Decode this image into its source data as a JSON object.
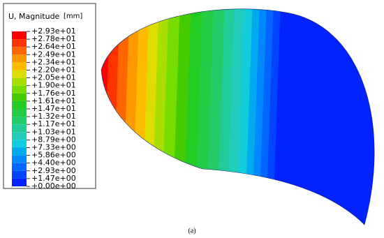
{
  "legend": {
    "title": "U, Magnitude",
    "unit": "[mm]",
    "labels": [
      "+2.93e+01",
      "+2.78e+01",
      "+2.64e+01",
      "+2.49e+01",
      "+2.34e+01",
      "+2.20e+01",
      "+2.05e+01",
      "+1.90e+01",
      "+1.76e+01",
      "+1.61e+01",
      "+1.47e+01",
      "+1.32e+01",
      "+1.17e+01",
      "+1.03e+01",
      "+8.79e+00",
      "+7.33e+00",
      "+5.86e+00",
      "+4.40e+00",
      "+2.93e+00",
      "+1.47e+00",
      "+0.00e+00"
    ],
    "colors": [
      "#ff0000",
      "#ff3300",
      "#ff6600",
      "#ff9900",
      "#ffbb00",
      "#dddd00",
      "#aadd00",
      "#77dd00",
      "#44cc00",
      "#22cc22",
      "#22cc44",
      "#22cc66",
      "#22cc99",
      "#22ccbb",
      "#11ccdd",
      "#00aaee",
      "#0088ff",
      "#0066ff",
      "#0044ff",
      "#0022ff"
    ]
  },
  "caption": "(a)"
}
